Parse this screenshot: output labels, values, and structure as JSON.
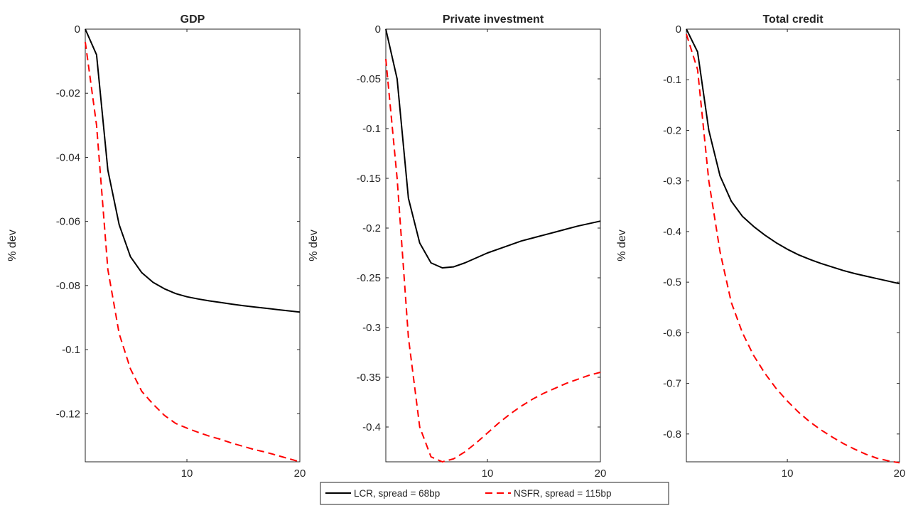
{
  "chart_data": [
    {
      "type": "line",
      "title": "GDP",
      "xlabel": "",
      "ylabel": "% dev",
      "xlim": [
        1,
        20
      ],
      "ylim": [
        -0.135,
        0
      ],
      "xticks": [
        10,
        20
      ],
      "yticks": [
        0,
        -0.02,
        -0.04,
        -0.06,
        -0.08,
        -0.1,
        -0.12
      ],
      "ytick_labels": [
        "0",
        "-0.02",
        "-0.04",
        "-0.06",
        "-0.08",
        "-0.1",
        "-0.12"
      ],
      "x": [
        1,
        2,
        3,
        4,
        5,
        6,
        7,
        8,
        9,
        10,
        11,
        12,
        13,
        14,
        15,
        16,
        17,
        18,
        19,
        20
      ],
      "series": [
        {
          "name": "LCR, spread = 68bp",
          "color": "#000000",
          "style": "solid",
          "values": [
            0,
            -0.008,
            -0.044,
            -0.061,
            -0.071,
            -0.076,
            -0.079,
            -0.081,
            -0.0825,
            -0.0835,
            -0.0842,
            -0.0848,
            -0.0853,
            -0.0858,
            -0.0863,
            -0.0867,
            -0.0871,
            -0.0875,
            -0.0879,
            -0.0883
          ]
        },
        {
          "name": "NSFR, spread = 115bp",
          "color": "#ff0000",
          "style": "dashed",
          "values": [
            -0.004,
            -0.03,
            -0.075,
            -0.095,
            -0.106,
            -0.113,
            -0.117,
            -0.1205,
            -0.123,
            -0.1245,
            -0.1258,
            -0.127,
            -0.128,
            -0.1292,
            -0.1302,
            -0.1312,
            -0.132,
            -0.133,
            -0.134,
            -0.135
          ]
        }
      ]
    },
    {
      "type": "line",
      "title": "Private investment",
      "xlabel": "",
      "ylabel": "% dev",
      "xlim": [
        1,
        20
      ],
      "ylim": [
        -0.435,
        0
      ],
      "xticks": [
        10,
        20
      ],
      "yticks": [
        0,
        -0.05,
        -0.1,
        -0.15,
        -0.2,
        -0.25,
        -0.3,
        -0.35,
        -0.4
      ],
      "ytick_labels": [
        "0",
        "-0.05",
        "-0.1",
        "-0.15",
        "-0.2",
        "-0.25",
        "-0.3",
        "-0.35",
        "-0.4"
      ],
      "x": [
        1,
        2,
        3,
        4,
        5,
        6,
        7,
        8,
        9,
        10,
        11,
        12,
        13,
        14,
        15,
        16,
        17,
        18,
        19,
        20
      ],
      "series": [
        {
          "name": "LCR, spread = 68bp",
          "color": "#000000",
          "style": "solid",
          "values": [
            0,
            -0.05,
            -0.17,
            -0.215,
            -0.235,
            -0.24,
            -0.239,
            -0.235,
            -0.23,
            -0.225,
            -0.221,
            -0.217,
            -0.213,
            -0.21,
            -0.207,
            -0.204,
            -0.201,
            -0.198,
            -0.1955,
            -0.193
          ]
        },
        {
          "name": "NSFR, spread = 115bp",
          "color": "#ff0000",
          "style": "dashed",
          "values": [
            -0.03,
            -0.15,
            -0.31,
            -0.4,
            -0.43,
            -0.435,
            -0.432,
            -0.425,
            -0.416,
            -0.406,
            -0.396,
            -0.387,
            -0.379,
            -0.372,
            -0.366,
            -0.361,
            -0.356,
            -0.352,
            -0.348,
            -0.345
          ]
        }
      ]
    },
    {
      "type": "line",
      "title": "Total credit",
      "xlabel": "",
      "ylabel": "% dev",
      "xlim": [
        1,
        20
      ],
      "ylim": [
        -0.855,
        0
      ],
      "xticks": [
        10,
        20
      ],
      "yticks": [
        0,
        -0.1,
        -0.2,
        -0.3,
        -0.4,
        -0.5,
        -0.6,
        -0.7,
        -0.8
      ],
      "ytick_labels": [
        "0",
        "-0.1",
        "-0.2",
        "-0.3",
        "-0.4",
        "-0.5",
        "-0.6",
        "-0.7",
        "-0.8"
      ],
      "x": [
        1,
        2,
        3,
        4,
        5,
        6,
        7,
        8,
        9,
        10,
        11,
        12,
        13,
        14,
        15,
        16,
        17,
        18,
        19,
        20
      ],
      "series": [
        {
          "name": "LCR, spread = 68bp",
          "color": "#000000",
          "style": "solid",
          "values": [
            0,
            -0.045,
            -0.2,
            -0.29,
            -0.34,
            -0.37,
            -0.39,
            -0.407,
            -0.422,
            -0.435,
            -0.446,
            -0.455,
            -0.463,
            -0.47,
            -0.477,
            -0.483,
            -0.488,
            -0.493,
            -0.498,
            -0.503
          ]
        },
        {
          "name": "NSFR, spread = 115bp",
          "color": "#ff0000",
          "style": "dashed",
          "values": [
            -0.01,
            -0.08,
            -0.3,
            -0.44,
            -0.54,
            -0.6,
            -0.645,
            -0.68,
            -0.71,
            -0.735,
            -0.757,
            -0.776,
            -0.792,
            -0.806,
            -0.819,
            -0.83,
            -0.84,
            -0.848,
            -0.853,
            -0.857
          ]
        }
      ]
    }
  ],
  "legend": {
    "placement": "bottom-center",
    "entries": [
      {
        "label": "LCR, spread = 68bp",
        "color": "#000000",
        "style": "solid"
      },
      {
        "label": "NSFR, spread = 115bp",
        "color": "#ff0000",
        "style": "dashed"
      }
    ]
  }
}
